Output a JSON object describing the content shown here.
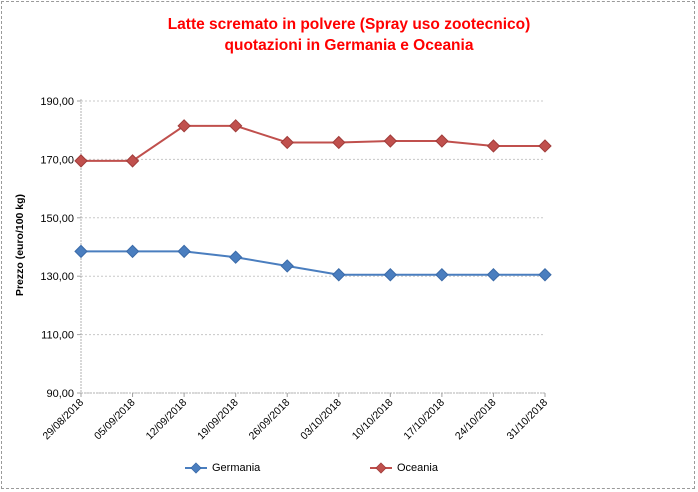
{
  "chart_data": {
    "type": "line",
    "title": [
      "Latte scremato in polvere (Spray uso zootecnico)",
      "quotazioni in Germania e Oceania"
    ],
    "xlabel": "",
    "ylabel": "Prezzo (euro/100 kg)",
    "categories": [
      "29/08/2018",
      "05/09/2018",
      "12/09/2018",
      "19/09/2018",
      "26/09/2018",
      "03/10/2018",
      "10/10/2018",
      "17/10/2018",
      "24/10/2018",
      "31/10/2018"
    ],
    "series": [
      {
        "name": "Germania",
        "color": "#4a7ebf",
        "values": [
          138.5,
          138.5,
          138.5,
          136.5,
          133.5,
          130.5,
          130.5,
          130.5,
          130.5,
          130.5
        ]
      },
      {
        "name": "Oceania",
        "color": "#c0504d",
        "values": [
          169.5,
          169.5,
          181.5,
          181.5,
          175.8,
          175.8,
          176.3,
          176.3,
          174.6,
          174.6
        ]
      }
    ],
    "ylim": [
      90,
      190
    ],
    "yticks": [
      90,
      110,
      130,
      150,
      170,
      190
    ],
    "ytick_labels": [
      "90,00",
      "110,00",
      "130,00",
      "150,00",
      "170,00",
      "190,00"
    ],
    "grid": true,
    "legend_position": "bottom",
    "marker": "diamond"
  }
}
